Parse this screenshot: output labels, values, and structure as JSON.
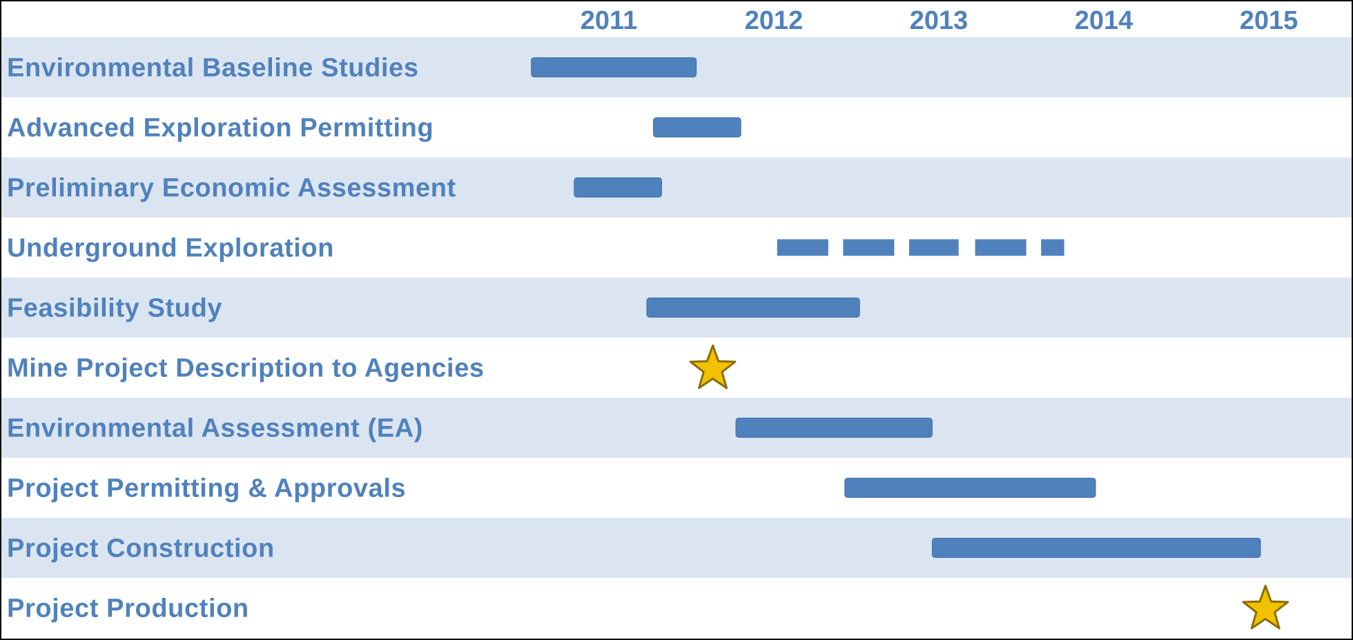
{
  "chart_data": {
    "type": "gantt",
    "x_axis": {
      "ticks": [
        "2011",
        "2012",
        "2013",
        "2014",
        "2015"
      ],
      "range": [
        2010.5,
        2015.35
      ]
    },
    "grid": false,
    "legend": "none",
    "colors": {
      "bar": "#4f81bd",
      "band": "#dbe5f1",
      "label": "#4f81bd",
      "star": "#f2c200",
      "star_outline": "#8a6d00"
    },
    "rows": [
      {
        "label": "Environmental Baseline Studies",
        "type": "bar",
        "start": 2010.53,
        "end": 2011.53
      },
      {
        "label": "Advanced Exploration Permitting",
        "type": "bar",
        "start": 2011.27,
        "end": 2011.8
      },
      {
        "label": "Preliminary Economic Assessment",
        "type": "bar",
        "start": 2010.79,
        "end": 2011.32
      },
      {
        "label": "Underground Exploration",
        "type": "dashed",
        "segments": [
          [
            2012.02,
            2012.33
          ],
          [
            2012.42,
            2012.73
          ],
          [
            2012.82,
            2013.12
          ],
          [
            2013.22,
            2013.53
          ],
          [
            2013.62,
            2013.76
          ]
        ]
      },
      {
        "label": "Feasibility Study",
        "type": "bar",
        "start": 2011.23,
        "end": 2012.52
      },
      {
        "label": "Mine Project Description to Agencies",
        "type": "milestone",
        "at": 2011.63
      },
      {
        "label": "Environmental Assessment (EA)",
        "type": "bar",
        "start": 2011.77,
        "end": 2012.96
      },
      {
        "label": "Project Permitting & Approvals",
        "type": "bar",
        "start": 2012.43,
        "end": 2013.95
      },
      {
        "label": "Project Construction",
        "type": "bar",
        "start": 2012.96,
        "end": 2014.95
      },
      {
        "label": "Project Production",
        "type": "milestone",
        "at": 2014.98
      }
    ]
  }
}
